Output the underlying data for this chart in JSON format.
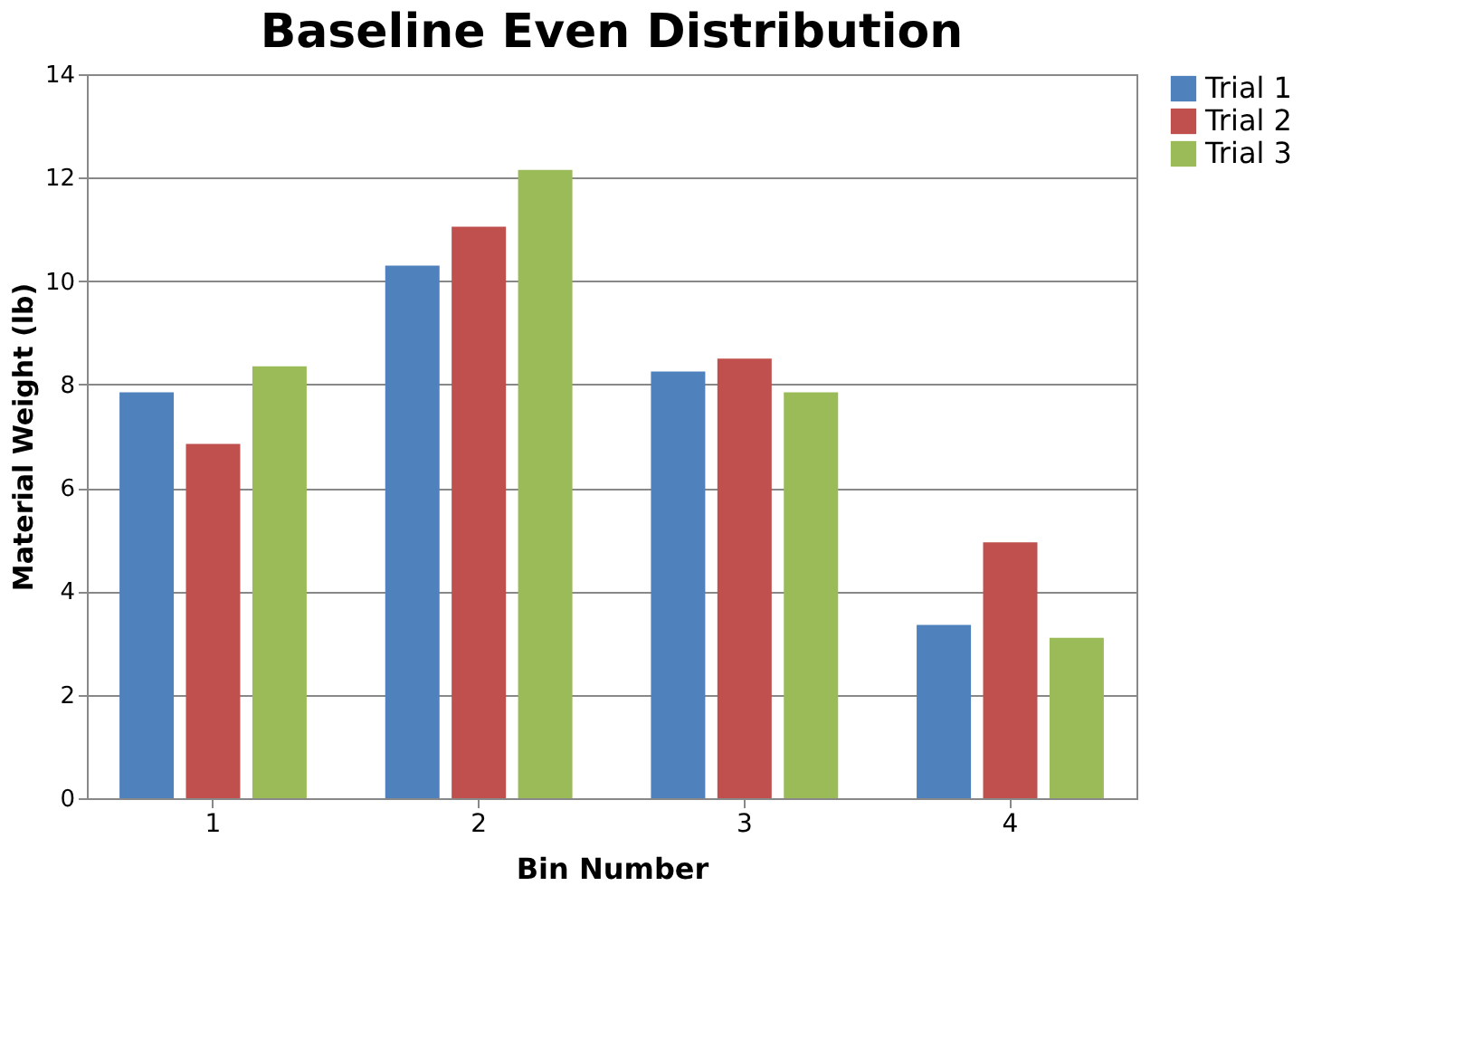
{
  "chart_data": {
    "type": "bar",
    "title": "Baseline Even Distribution",
    "xlabel": "Bin Number",
    "ylabel": "Material Weight (lb)",
    "categories": [
      "1",
      "2",
      "3",
      "4"
    ],
    "series": [
      {
        "name": "Trial 1",
        "color": "#4f81bd",
        "values": [
          7.85,
          10.3,
          8.25,
          3.35
        ]
      },
      {
        "name": "Trial 2",
        "color": "#c0504d",
        "values": [
          6.85,
          11.05,
          8.5,
          4.95
        ]
      },
      {
        "name": "Trial 3",
        "color": "#9bbb59",
        "values": [
          8.35,
          12.15,
          7.85,
          3.1
        ]
      }
    ],
    "ylim": [
      0,
      14
    ],
    "yticks": [
      0,
      2,
      4,
      6,
      8,
      10,
      12,
      14
    ],
    "grid": "y",
    "legend": "right"
  }
}
